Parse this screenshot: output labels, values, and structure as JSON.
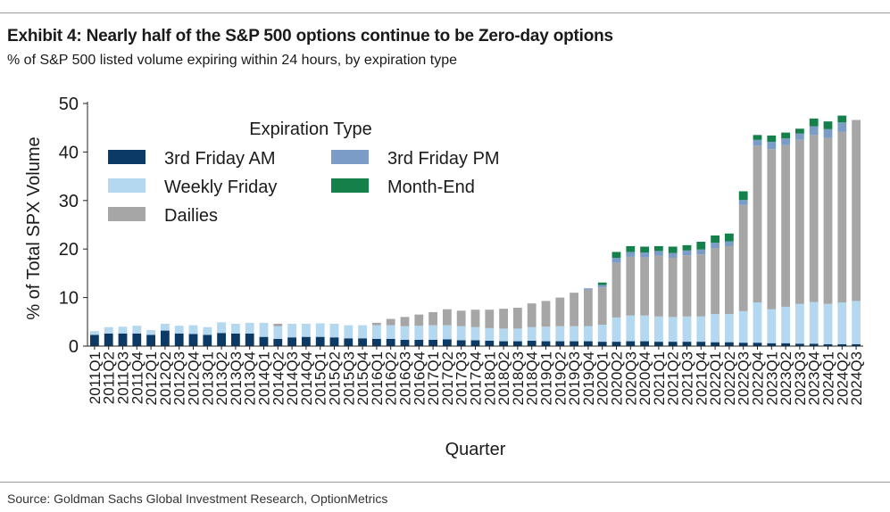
{
  "header": {
    "title": "Exhibit 4: Nearly half of the S&P 500 options continue to be Zero-day options",
    "subtitle": "% of S&P 500 listed volume expiring within 24 hours, by expiration type"
  },
  "footer": {
    "source": "Source: Goldman Sachs Global Investment Research, OptionMetrics"
  },
  "chart_data": {
    "type": "bar",
    "stacked": true,
    "title": "Exhibit 4: Nearly half of the S&P 500 options continue to be Zero-day options",
    "subtitle": "% of S&P 500 listed volume expiring within 24 hours, by expiration type",
    "xlabel": "Quarter",
    "ylabel": "% of Total SPX Volume",
    "ylim": [
      0,
      50
    ],
    "yticks": [
      0,
      10,
      20,
      30,
      40,
      50
    ],
    "grid": false,
    "legend": {
      "title": "Expiration Type",
      "placement": "top-left"
    },
    "categories": [
      "2011Q1",
      "2011Q2",
      "2011Q3",
      "2011Q4",
      "2012Q1",
      "2012Q2",
      "2012Q3",
      "2012Q4",
      "2013Q1",
      "2013Q2",
      "2013Q3",
      "2013Q4",
      "2014Q1",
      "2014Q2",
      "2014Q3",
      "2014Q4",
      "2015Q1",
      "2015Q2",
      "2015Q3",
      "2015Q4",
      "2016Q1",
      "2016Q2",
      "2016Q3",
      "2016Q4",
      "2017Q1",
      "2017Q2",
      "2017Q3",
      "2017Q4",
      "2018Q1",
      "2018Q2",
      "2018Q3",
      "2018Q4",
      "2019Q1",
      "2019Q2",
      "2019Q3",
      "2019Q4",
      "2020Q1",
      "2020Q2",
      "2020Q3",
      "2020Q4",
      "2021Q1",
      "2021Q2",
      "2021Q3",
      "2021Q4",
      "2022Q1",
      "2022Q2",
      "2022Q3",
      "2022Q4",
      "2023Q1",
      "2023Q2",
      "2023Q3",
      "2023Q4",
      "2024Q1",
      "2024Q2",
      "2024Q3"
    ],
    "series": [
      {
        "name": "3rd Friday AM",
        "color": "#0b3a66",
        "values": [
          2.3,
          2.6,
          2.6,
          2.6,
          2.3,
          3.2,
          2.6,
          2.5,
          2.3,
          2.7,
          2.6,
          2.6,
          1.9,
          1.5,
          1.8,
          1.9,
          1.9,
          1.8,
          1.6,
          1.6,
          1.5,
          1.5,
          1.3,
          1.3,
          1.3,
          1.4,
          1.2,
          1.2,
          1.1,
          1.0,
          1.0,
          1.1,
          1.0,
          1.0,
          1.0,
          1.0,
          0.9,
          0.9,
          1.0,
          1.0,
          0.9,
          0.9,
          0.9,
          0.9,
          0.8,
          0.8,
          0.7,
          0.7,
          0.6,
          0.6,
          0.5,
          0.5,
          0.4,
          0.4,
          0.4
        ]
      },
      {
        "name": "Weekly Friday",
        "color": "#b3d8f0",
        "values": [
          0.8,
          1.3,
          1.4,
          1.6,
          1.0,
          1.4,
          1.6,
          1.8,
          1.6,
          2.2,
          2.0,
          2.2,
          2.9,
          2.6,
          2.8,
          2.7,
          2.8,
          2.8,
          2.7,
          2.7,
          2.8,
          2.8,
          2.8,
          2.9,
          3.0,
          2.9,
          2.9,
          2.7,
          2.6,
          2.6,
          2.6,
          2.8,
          3.0,
          3.1,
          3.1,
          3.1,
          3.5,
          5.0,
          5.3,
          5.3,
          5.2,
          5.1,
          5.2,
          5.2,
          5.8,
          5.8,
          6.5,
          8.3,
          7.0,
          7.5,
          8.2,
          8.6,
          8.3,
          8.6,
          8.9
        ]
      },
      {
        "name": "3rd Friday PM",
        "color": "#7a9cc6",
        "values": [
          0.0,
          0.0,
          0.0,
          0.0,
          0.0,
          0.0,
          0.0,
          0.0,
          0.0,
          0.0,
          0.0,
          0.0,
          0.0,
          0.0,
          0.0,
          0.0,
          0.0,
          0.0,
          0.0,
          0.0,
          0.0,
          0.0,
          0.0,
          0.0,
          0.0,
          0.0,
          0.0,
          0.0,
          0.0,
          0.0,
          0.0,
          0.0,
          0.0,
          0.0,
          0.0,
          0.3,
          0.5,
          1.0,
          1.0,
          1.0,
          1.0,
          1.0,
          1.0,
          1.0,
          1.1,
          1.0,
          1.0,
          1.2,
          1.5,
          1.4,
          1.3,
          1.8,
          1.8,
          1.9,
          0.0
        ]
      },
      {
        "name": "Month-End",
        "color": "#14804a",
        "values": [
          0.0,
          0.0,
          0.0,
          0.0,
          0.0,
          0.0,
          0.0,
          0.0,
          0.0,
          0.0,
          0.0,
          0.0,
          0.0,
          0.0,
          0.0,
          0.0,
          0.0,
          0.0,
          0.0,
          0.0,
          0.0,
          0.0,
          0.0,
          0.0,
          0.0,
          0.0,
          0.0,
          0.0,
          0.0,
          0.0,
          0.0,
          0.0,
          0.0,
          0.0,
          0.0,
          0.0,
          0.5,
          1.2,
          1.2,
          1.2,
          1.0,
          1.3,
          1.1,
          1.6,
          1.5,
          1.6,
          1.8,
          1.0,
          1.3,
          1.2,
          1.0,
          1.6,
          1.6,
          1.4,
          0.0
        ]
      },
      {
        "name": "Dailies",
        "color": "#a6a6a6",
        "values": [
          0.0,
          0.0,
          0.0,
          0.0,
          0.0,
          0.0,
          0.0,
          0.0,
          0.0,
          0.0,
          0.0,
          0.0,
          0.0,
          0.5,
          0.0,
          0.0,
          0.0,
          0.0,
          0.0,
          0.0,
          0.5,
          1.3,
          1.9,
          2.3,
          2.7,
          3.3,
          3.2,
          3.6,
          3.8,
          4.1,
          4.3,
          4.9,
          5.3,
          5.9,
          6.9,
          7.5,
          7.7,
          11.3,
          12.1,
          12.0,
          12.5,
          12.2,
          12.6,
          12.8,
          13.6,
          14.0,
          21.9,
          32.3,
          33.0,
          33.3,
          33.8,
          34.4,
          34.2,
          35.2,
          37.3
        ]
      }
    ]
  }
}
